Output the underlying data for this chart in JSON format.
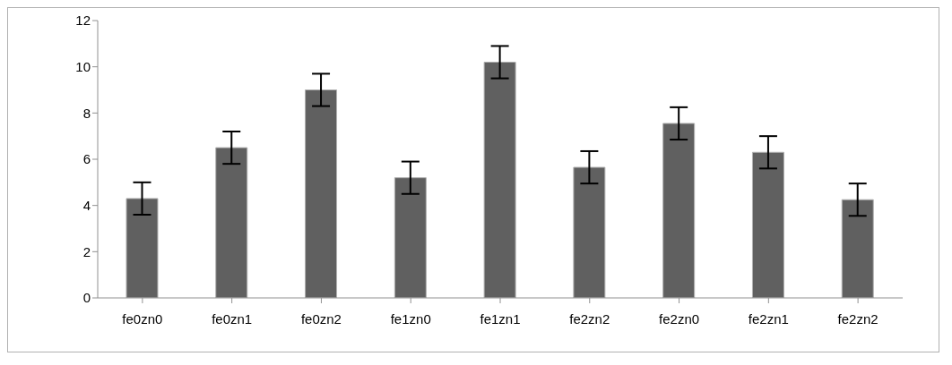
{
  "chart_data": {
    "type": "bar",
    "categories": [
      "fe0zn0",
      "fe0zn1",
      "fe0zn2",
      "fe1zn0",
      "fe1zn1",
      "fe2zn2",
      "fe2zn0",
      "fe2zn1",
      "fe2zn2"
    ],
    "values": [
      4.3,
      6.5,
      9.0,
      5.2,
      10.2,
      5.65,
      7.55,
      6.3,
      4.25
    ],
    "errors": [
      0.7,
      0.7,
      0.7,
      0.7,
      0.7,
      0.7,
      0.7,
      0.7,
      0.7
    ],
    "color": "#606060",
    "ylim": [
      0,
      12
    ],
    "yticks": [
      0,
      2,
      4,
      6,
      8,
      10,
      12
    ],
    "grid": false
  }
}
